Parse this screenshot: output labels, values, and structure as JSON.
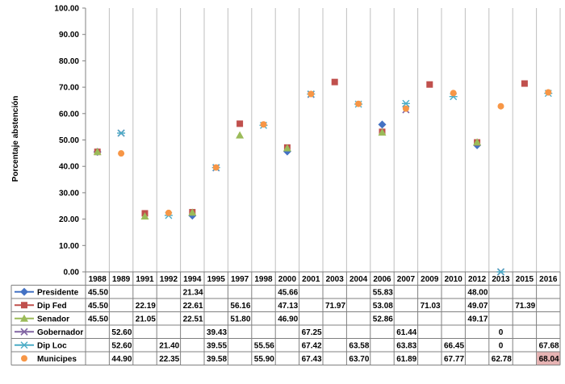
{
  "chart_data": {
    "type": "scatter",
    "title": "",
    "xlabel": "",
    "ylabel": "Porcentaje abstención",
    "ylim": [
      0,
      100
    ],
    "yticks": [
      "0.00",
      "10.00",
      "20.00",
      "30.00",
      "40.00",
      "50.00",
      "60.00",
      "70.00",
      "80.00",
      "90.00",
      "100.00"
    ],
    "grid": "vertical",
    "legend": "data-table-below",
    "categories": [
      "1988",
      "1989",
      "1991",
      "1992",
      "1994",
      "1995",
      "1997",
      "1998",
      "2000",
      "2001",
      "2003",
      "2004",
      "2006",
      "2007",
      "2009",
      "2010",
      "2012",
      "2013",
      "2015",
      "2016"
    ],
    "series": [
      {
        "name": "Presidente",
        "color": "#4472c4",
        "marker": "diamond",
        "values": [
          45.5,
          null,
          null,
          null,
          21.34,
          null,
          null,
          null,
          45.66,
          null,
          null,
          null,
          55.83,
          null,
          null,
          null,
          48.0,
          null,
          null,
          null
        ],
        "labels": [
          "45.50",
          "",
          "",
          "",
          "21.34",
          "",
          "",
          "",
          "45.66",
          "",
          "",
          "",
          "55.83",
          "",
          "",
          "",
          "48.00",
          "",
          "",
          ""
        ]
      },
      {
        "name": "Dip Fed",
        "color": "#c0504d",
        "marker": "square",
        "values": [
          45.5,
          null,
          22.19,
          null,
          22.61,
          null,
          56.16,
          null,
          47.13,
          null,
          71.97,
          null,
          53.08,
          null,
          71.03,
          null,
          49.07,
          null,
          71.39,
          null
        ],
        "labels": [
          "45.50",
          "",
          "22.19",
          "",
          "22.61",
          "",
          "56.16",
          "",
          "47.13",
          "",
          "71.97",
          "",
          "53.08",
          "",
          "71.03",
          "",
          "49.07",
          "",
          "71.39",
          ""
        ]
      },
      {
        "name": "Senador",
        "color": "#9bbb59",
        "marker": "triangle",
        "values": [
          45.5,
          null,
          21.05,
          null,
          22.51,
          null,
          51.8,
          null,
          46.9,
          null,
          null,
          null,
          52.86,
          null,
          null,
          null,
          49.17,
          null,
          null,
          null
        ],
        "labels": [
          "45.50",
          "",
          "21.05",
          "",
          "22.51",
          "",
          "51.80",
          "",
          "46.90",
          "",
          "",
          "",
          "52.86",
          "",
          "",
          "",
          "49.17",
          "",
          "",
          ""
        ]
      },
      {
        "name": "Gobernador",
        "color": "#8064a2",
        "marker": "x",
        "values": [
          null,
          52.6,
          null,
          null,
          null,
          39.43,
          null,
          null,
          null,
          67.25,
          null,
          null,
          null,
          61.44,
          null,
          null,
          null,
          0,
          null,
          null
        ],
        "labels": [
          "",
          "52.60",
          "",
          "",
          "",
          "39.43",
          "",
          "",
          "",
          "67.25",
          "",
          "",
          "",
          "61.44",
          "",
          "",
          "",
          "0",
          "",
          ""
        ]
      },
      {
        "name": "Dip Loc",
        "color": "#4bacc6",
        "marker": "star",
        "values": [
          null,
          52.6,
          null,
          21.4,
          null,
          39.55,
          null,
          55.56,
          null,
          67.42,
          null,
          63.58,
          null,
          63.83,
          null,
          66.45,
          null,
          0,
          null,
          67.68
        ],
        "labels": [
          "",
          "52.60",
          "",
          "21.40",
          "",
          "39.55",
          "",
          "55.56",
          "",
          "67.42",
          "",
          "63.58",
          "",
          "63.83",
          "",
          "66.45",
          "",
          "0",
          "",
          "67.68"
        ]
      },
      {
        "name": "Municipes",
        "color": "#f79646",
        "marker": "circle",
        "values": [
          null,
          44.9,
          null,
          22.35,
          null,
          39.58,
          null,
          55.9,
          null,
          67.43,
          null,
          63.7,
          null,
          61.89,
          null,
          67.77,
          null,
          62.78,
          null,
          68.04
        ],
        "labels": [
          "",
          "44.90",
          "",
          "22.35",
          "",
          "39.58",
          "",
          "55.90",
          "",
          "67.43",
          "",
          "63.70",
          "",
          "61.89",
          "",
          "67.77",
          "",
          "62.78",
          "",
          "68.04"
        ]
      }
    ],
    "highlight": {
      "series": "Municipes",
      "category": "2016",
      "color": "#e6b3b3"
    }
  }
}
